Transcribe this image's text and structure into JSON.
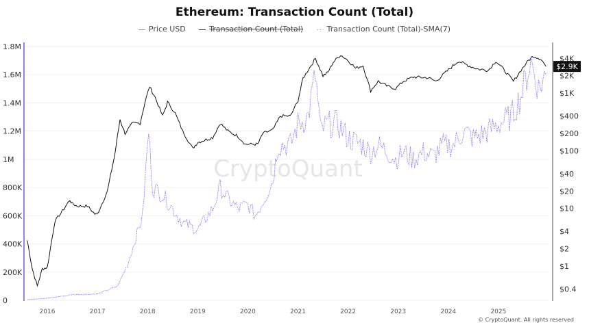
{
  "chart_data": {
    "type": "line",
    "title": "Ethereum: Transaction Count (Total)",
    "legend": [
      "Price USD",
      "Transaction Count (Total)",
      "Transaction Count (Total)-SMA(7)"
    ],
    "legend_hidden": [
      "Transaction Count (Total)"
    ],
    "legend_placement": "top-center",
    "x_ticks": [
      "2016",
      "2017",
      "2018",
      "2019",
      "2020",
      "2021",
      "2022",
      "2023",
      "2024",
      "2025"
    ],
    "left_axis": {
      "ticks": [
        "0",
        "200K",
        "400K",
        "600K",
        "800K",
        "1M",
        "1.2M",
        "1.4M",
        "1.6M",
        "1.8M"
      ],
      "ylim": [
        0,
        1800000
      ]
    },
    "right_axis": {
      "scale": "log",
      "ticks": [
        "$0.4",
        "$1",
        "$2",
        "$4",
        "$10",
        "$20",
        "$40",
        "$100",
        "$200",
        "$400",
        "$1K",
        "$2K",
        "$4K"
      ],
      "current_label": "$2.9K"
    },
    "series": [
      {
        "name": "Price USD",
        "axis": "right",
        "color": "#111111",
        "x": [
          2015.6,
          2015.7,
          2015.8,
          2015.9,
          2016.0,
          2016.15,
          2016.3,
          2016.45,
          2016.5,
          2016.6,
          2016.8,
          2016.95,
          2017.0,
          2017.2,
          2017.35,
          2017.45,
          2017.55,
          2017.7,
          2017.85,
          2017.95,
          2018.04,
          2018.15,
          2018.3,
          2018.4,
          2018.55,
          2018.7,
          2018.9,
          2019.0,
          2019.3,
          2019.45,
          2019.6,
          2019.8,
          2019.95,
          2020.2,
          2020.3,
          2020.5,
          2020.65,
          2020.85,
          2021.0,
          2021.1,
          2021.35,
          2021.5,
          2021.6,
          2021.7,
          2021.85,
          2022.0,
          2022.15,
          2022.3,
          2022.45,
          2022.6,
          2022.8,
          2022.95,
          2023.1,
          2023.3,
          2023.6,
          2023.75,
          2023.95,
          2024.2,
          2024.4,
          2024.6,
          2024.8,
          2024.95,
          2025.1,
          2025.3,
          2025.45,
          2025.6,
          2025.7,
          2025.85,
          2025.95
        ],
        "values": [
          2.8,
          0.9,
          0.45,
          0.9,
          0.95,
          6,
          9,
          14,
          12,
          11,
          11,
          8,
          8,
          20,
          90,
          350,
          200,
          300,
          300,
          700,
          1300,
          850,
          400,
          700,
          450,
          220,
          110,
          140,
          170,
          300,
          220,
          180,
          130,
          130,
          200,
          230,
          400,
          400,
          730,
          1800,
          4000,
          2000,
          2300,
          3400,
          4600,
          3700,
          2700,
          3000,
          1100,
          1600,
          1300,
          1200,
          1600,
          1900,
          1850,
          1600,
          2300,
          3600,
          3000,
          2600,
          2500,
          3600,
          2600,
          1600,
          2500,
          3700,
          4400,
          3900,
          2900
        ]
      },
      {
        "name": "Transaction Count (Total)-SMA(7)",
        "axis": "left",
        "color": "#7b6cf0",
        "x": [
          2015.6,
          2016.0,
          2016.5,
          2017.0,
          2017.4,
          2017.6,
          2017.9,
          2018.02,
          2018.1,
          2018.3,
          2018.5,
          2018.7,
          2019.0,
          2019.1,
          2019.3,
          2019.45,
          2019.6,
          2019.8,
          2020.0,
          2020.15,
          2020.3,
          2020.5,
          2020.6,
          2020.85,
          2021.0,
          2021.2,
          2021.35,
          2021.45,
          2021.6,
          2021.8,
          2022.0,
          2022.3,
          2022.45,
          2022.6,
          2022.8,
          2022.95,
          2023.1,
          2023.3,
          2023.5,
          2023.7,
          2023.9,
          2024.1,
          2024.3,
          2024.5,
          2024.8,
          2025.0,
          2025.25,
          2025.45,
          2025.65,
          2025.8,
          2025.95
        ],
        "values": [
          5000,
          15000,
          40000,
          45000,
          100000,
          250000,
          600000,
          1200000,
          800000,
          750000,
          650000,
          550000,
          500000,
          550000,
          650000,
          800000,
          720000,
          650000,
          680000,
          600000,
          700000,
          850000,
          1100000,
          1100000,
          1250000,
          1300000,
          1600000,
          1200000,
          1250000,
          1250000,
          1150000,
          1100000,
          1050000,
          1100000,
          1050000,
          1000000,
          1050000,
          1000000,
          1050000,
          1020000,
          1100000,
          1100000,
          1200000,
          1150000,
          1200000,
          1250000,
          1300000,
          1450000,
          1700000,
          1500000,
          1600000
        ]
      }
    ]
  },
  "watermark": "CryptoQuant",
  "footer": "© CryptoQuant. All rights reserved"
}
